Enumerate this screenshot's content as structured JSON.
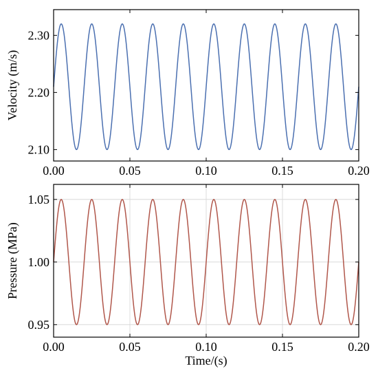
{
  "chart_data": [
    {
      "type": "line",
      "ylabel": "Velocity (m/s)",
      "xlabel": "",
      "xlim": [
        0,
        0.2
      ],
      "ylim": [
        2.08,
        2.345
      ],
      "xticks": [
        0,
        0.05,
        0.1,
        0.15,
        0.2
      ],
      "xtick_labels": [
        "0.00",
        "0.05",
        "0.10",
        "0.15",
        "0.20"
      ],
      "yticks": [
        2.1,
        2.2,
        2.3
      ],
      "ytick_labels": [
        "2.10",
        "2.20",
        "2.30"
      ],
      "grid": false,
      "series": [
        {
          "color": "#4a6fb0",
          "function": "sine",
          "mean": 2.21,
          "amplitude": 0.11,
          "frequency_hz": 50,
          "phase_rad": 0
        }
      ]
    },
    {
      "type": "line",
      "ylabel": "Pressure (MPa)",
      "xlabel": "Time/(s)",
      "xlim": [
        0,
        0.2
      ],
      "ylim": [
        0.94,
        1.062
      ],
      "xticks": [
        0,
        0.05,
        0.1,
        0.15,
        0.2
      ],
      "xtick_labels": [
        "0.00",
        "0.05",
        "0.10",
        "0.15",
        "0.20"
      ],
      "yticks": [
        0.95,
        1.0,
        1.05
      ],
      "ytick_labels": [
        "0.95",
        "1.00",
        "1.05"
      ],
      "grid": true,
      "series": [
        {
          "color": "#b0564a",
          "function": "sine",
          "mean": 1.0,
          "amplitude": 0.05,
          "frequency_hz": 50,
          "phase_rad": 0
        }
      ]
    }
  ]
}
